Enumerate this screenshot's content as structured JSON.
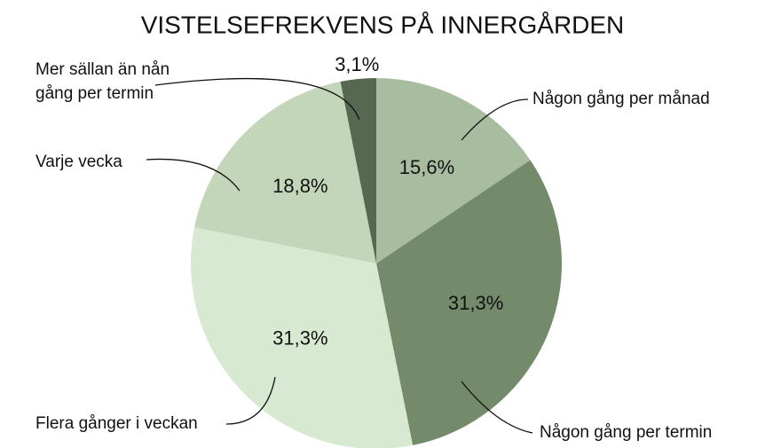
{
  "chart_data": {
    "type": "pie",
    "title": "VISTELSEFREKVENS PÅ INNERGÅRDEN",
    "categories": [
      "Någon gång per månad",
      "Någon gång per termin",
      "Flera gånger i veckan",
      "Varje vecka",
      "Mer sällan än nån gång per termin"
    ],
    "values": [
      15.6,
      31.3,
      31.3,
      18.8,
      3.1
    ],
    "value_labels": [
      "15,6%",
      "31,3%",
      "31,3%",
      "18,8%",
      "3,1%"
    ],
    "colors": [
      "#a8bd9f",
      "#738a6b",
      "#d8e9d2",
      "#c4d6ba",
      "#56684f"
    ]
  }
}
